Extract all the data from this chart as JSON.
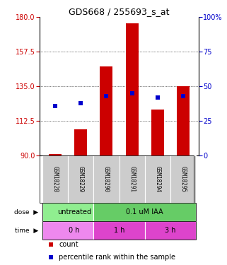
{
  "title": "GDS668 / 255693_s_at",
  "samples": [
    "GSM18228",
    "GSM18229",
    "GSM18290",
    "GSM18291",
    "GSM18294",
    "GSM18295"
  ],
  "bar_values": [
    91,
    107,
    148,
    176,
    120,
    135
  ],
  "bar_bottom": 90,
  "blue_values": [
    36,
    38,
    43,
    45,
    42,
    43
  ],
  "ylim_left": [
    90,
    180
  ],
  "ylim_right": [
    0,
    100
  ],
  "yticks_left": [
    90,
    112.5,
    135,
    157.5,
    180
  ],
  "yticks_right": [
    0,
    25,
    50,
    75,
    100
  ],
  "bar_color": "#cc0000",
  "blue_color": "#0000cc",
  "dose_labels": [
    "untreated",
    "0.1 uM IAA"
  ],
  "dose_colors": [
    "#90ee90",
    "#66cc66"
  ],
  "time_labels": [
    "0 h",
    "1 h",
    "3 h"
  ],
  "time_color_light": "#ee88ee",
  "time_color_dark": "#dd44cc",
  "sample_bg": "#cccccc",
  "legend_count_color": "#cc0000",
  "legend_pct_color": "#0000cc",
  "bg_white": "#ffffff"
}
